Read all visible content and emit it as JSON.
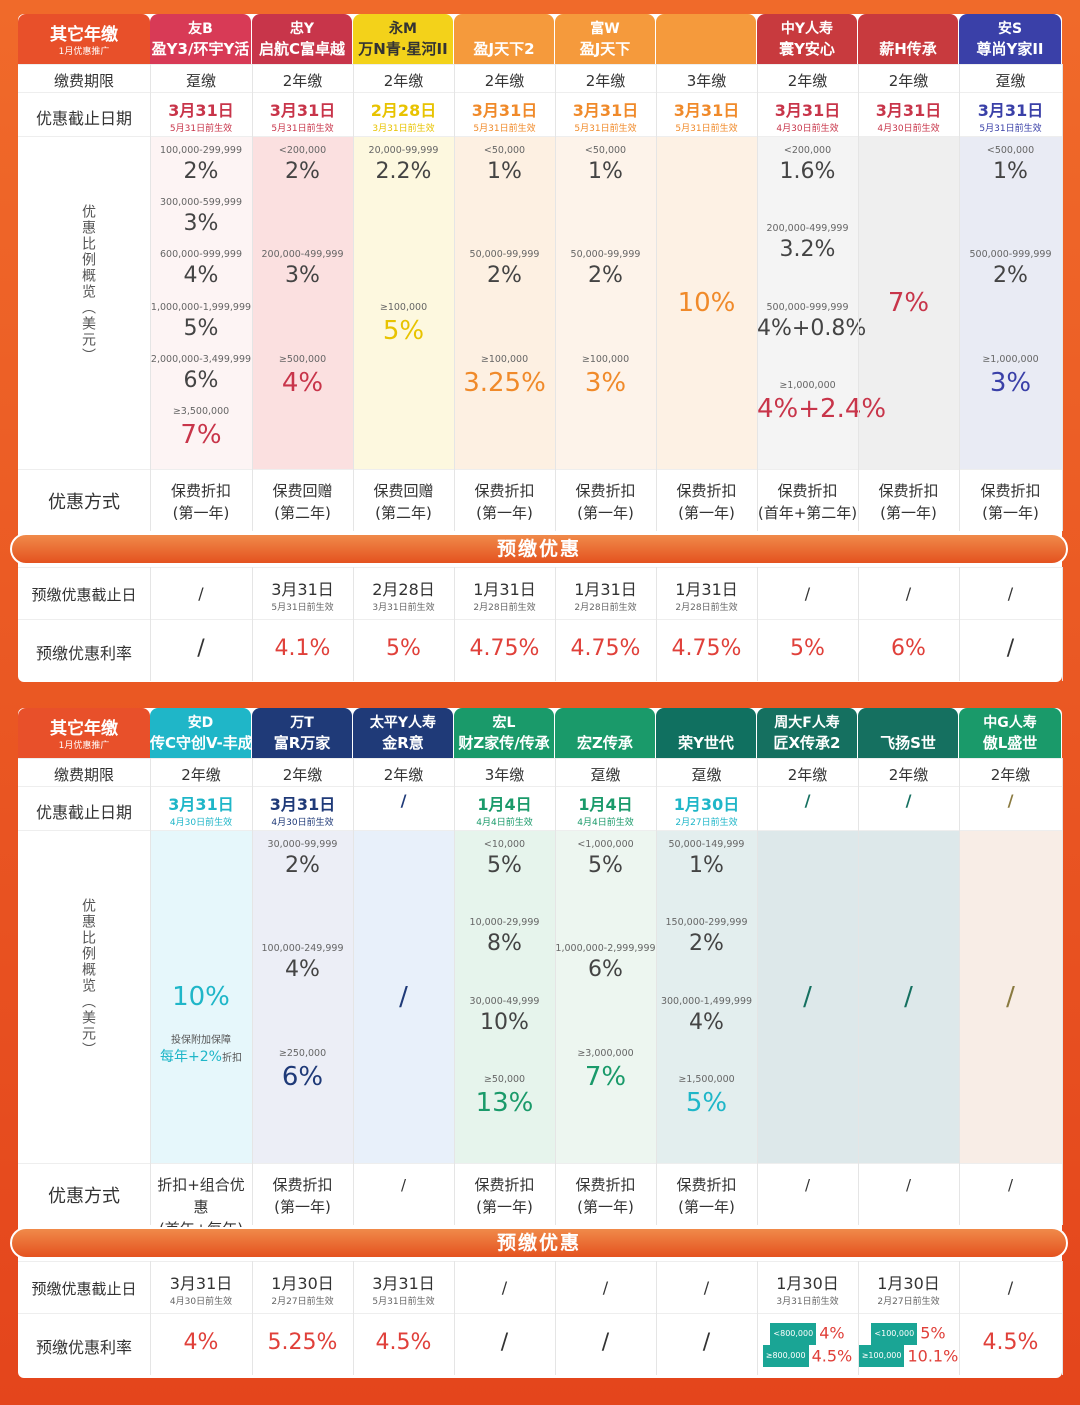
{
  "section1": {
    "corner": {
      "title": "其它年缴",
      "subtitle": "1月优惠推广"
    },
    "headers": [
      {
        "top": "友B",
        "bottom": "盈Y3/环宇Y活"
      },
      {
        "top": "忠Y",
        "bottom": "启航C富卓越"
      },
      {
        "top": "永M",
        "bottom": "万N青·星河II"
      },
      {
        "top": "",
        "bottom": "盈J天下2"
      },
      {
        "top": "富W",
        "bottom": "盈J天下"
      },
      {
        "top": "",
        "bottom": ""
      },
      {
        "top": "中Y人寿",
        "bottom": "寰Y安心"
      },
      {
        "top": "",
        "bottom": "薪H传承"
      },
      {
        "top": "安S",
        "bottom": "尊尚Y家II"
      }
    ],
    "labels": {
      "period": "缴费期限",
      "deadline": "优惠截止日期",
      "overview": "优惠比例概览（美元）",
      "method": "优惠方式",
      "banner": "预缴优惠",
      "pre_deadline": "预缴优惠截止日",
      "pre_rate": "预缴优惠利率"
    },
    "periods": [
      "趸缴",
      "2年缴",
      "2年缴",
      "2年缴",
      "2年缴",
      "3年缴",
      "2年缴",
      "2年缴",
      "趸缴"
    ],
    "deadlines": [
      {
        "date": "3月31日",
        "note": "5月31日前生效"
      },
      {
        "date": "3月31日",
        "note": "5月31日前生效"
      },
      {
        "date": "2月28日",
        "note": "3月31日前生效"
      },
      {
        "date": "3月31日",
        "note": "5月31日前生效"
      },
      {
        "date": "3月31日",
        "note": "5月31日前生效"
      },
      {
        "date": "3月31日",
        "note": "5月31日前生效"
      },
      {
        "date": "3月31日",
        "note": "4月30日前生效"
      },
      {
        "date": "3月31日",
        "note": "4月30日前生效"
      },
      {
        "date": "3月31日",
        "note": "5月31日前生效"
      }
    ],
    "tiers": [
      [
        {
          "r": "100,000-299,999",
          "p": "2%"
        },
        {
          "r": "300,000-599,999",
          "p": "3%"
        },
        {
          "r": "600,000-999,999",
          "p": "4%"
        },
        {
          "r": "1,000,000-1,999,999",
          "p": "5%"
        },
        {
          "r": "2,000,000-3,499,999",
          "p": "6%"
        },
        {
          "r": "≥3,500,000",
          "p": "7%"
        }
      ],
      [
        {
          "r": "<200,000",
          "p": "2%"
        },
        {
          "r": "200,000-499,999",
          "p": "3%"
        },
        {
          "r": "≥500,000",
          "p": "4%"
        }
      ],
      [
        {
          "r": "20,000-99,999",
          "p": "2.2%"
        },
        {
          "r": "≥100,000",
          "p": "5%"
        }
      ],
      [
        {
          "r": "<50,000",
          "p": "1%"
        },
        {
          "r": "50,000-99,999",
          "p": "2%"
        },
        {
          "r": "≥100,000",
          "p": "3.25%"
        }
      ],
      [
        {
          "r": "<50,000",
          "p": "1%"
        },
        {
          "r": "50,000-99,999",
          "p": "2%"
        },
        {
          "r": "≥100,000",
          "p": "3%"
        }
      ],
      [
        {
          "r": "",
          "p": "10%"
        }
      ],
      [
        {
          "r": "<200,000",
          "p": "1.6%"
        },
        {
          "r": "200,000-499,999",
          "p": "3.2%"
        },
        {
          "r": "500,000-999,999",
          "p": "4%+0.8%"
        },
        {
          "r": "≥1,000,000",
          "p": "4%+2.4%"
        }
      ],
      [
        {
          "r": "",
          "p": "7%"
        }
      ],
      [
        {
          "r": "<500,000",
          "p": "1%"
        },
        {
          "r": "500,000-999,999",
          "p": "2%"
        },
        {
          "r": "≥1,000,000",
          "p": "3%"
        }
      ]
    ],
    "methods": [
      [
        "保费折扣",
        "(第一年)"
      ],
      [
        "保费回赠",
        "(第二年)"
      ],
      [
        "保费回赠",
        "(第二年)"
      ],
      [
        "保费折扣",
        "(第一年)"
      ],
      [
        "保费折扣",
        "(第一年)"
      ],
      [
        "保费折扣",
        "(第一年)"
      ],
      [
        "保费折扣",
        "(首年+第二年)"
      ],
      [
        "保费折扣",
        "(第一年)"
      ],
      [
        "保费折扣",
        "(第一年)"
      ]
    ],
    "pre_deadlines": [
      {
        "date": "/",
        "note": ""
      },
      {
        "date": "3月31日",
        "note": "5月31日前生效"
      },
      {
        "date": "2月28日",
        "note": "3月31日前生效"
      },
      {
        "date": "1月31日",
        "note": "2月28日前生效"
      },
      {
        "date": "1月31日",
        "note": "2月28日前生效"
      },
      {
        "date": "1月31日",
        "note": "2月28日前生效"
      },
      {
        "date": "/",
        "note": ""
      },
      {
        "date": "/",
        "note": ""
      },
      {
        "date": "/",
        "note": ""
      }
    ],
    "pre_rates": [
      "/",
      "4.1%",
      "5%",
      "4.75%",
      "4.75%",
      "4.75%",
      "5%",
      "6%",
      "/"
    ]
  },
  "section2": {
    "corner": {
      "title": "其它年缴",
      "subtitle": "1月优惠推广"
    },
    "headers": [
      {
        "top": "安D",
        "bottom": "传C守创V-丰成"
      },
      {
        "top": "万T",
        "bottom": "富R万家"
      },
      {
        "top": "太平Y人寿",
        "bottom": "金R意"
      },
      {
        "top": "宏L",
        "bottom": "财Z家传/传承"
      },
      {
        "top": "",
        "bottom": "宏Z传承"
      },
      {
        "top": "",
        "bottom": "荣Y世代"
      },
      {
        "top": "周大F人寿",
        "bottom": "匠X传承2"
      },
      {
        "top": "",
        "bottom": "飞扬S世"
      },
      {
        "top": "中G人寿",
        "bottom": "傲L盛世"
      }
    ],
    "periods": [
      "2年缴",
      "2年缴",
      "2年缴",
      "3年缴",
      "趸缴",
      "趸缴",
      "2年缴",
      "2年缴",
      "2年缴"
    ],
    "deadlines": [
      {
        "date": "3月31日",
        "note": "4月30日前生效"
      },
      {
        "date": "3月31日",
        "note": "4月30日前生效"
      },
      {
        "date": "/",
        "note": ""
      },
      {
        "date": "1月4日",
        "note": "4月4日前生效"
      },
      {
        "date": "1月4日",
        "note": "4月4日前生效"
      },
      {
        "date": "1月30日",
        "note": "2月27日前生效"
      },
      {
        "date": "/",
        "note": ""
      },
      {
        "date": "/",
        "note": ""
      },
      {
        "date": "/",
        "note": ""
      }
    ],
    "tiers": [
      [
        {
          "r": "",
          "p": "10%"
        }
      ],
      [
        {
          "r": "30,000-99,999",
          "p": "2%"
        },
        {
          "r": "100,000-249,999",
          "p": "4%"
        },
        {
          "r": "≥250,000",
          "p": "6%"
        }
      ],
      [
        {
          "r": "",
          "p": "/"
        }
      ],
      [
        {
          "r": "<10,000",
          "p": "5%"
        },
        {
          "r": "10,000-29,999",
          "p": "8%"
        },
        {
          "r": "30,000-49,999",
          "p": "10%"
        },
        {
          "r": "≥50,000",
          "p": "13%"
        }
      ],
      [
        {
          "r": "<1,000,000",
          "p": "5%"
        },
        {
          "r": "1,000,000-2,999,999",
          "p": "6%"
        },
        {
          "r": "≥3,000,000",
          "p": "7%"
        }
      ],
      [
        {
          "r": "50,000-149,999",
          "p": "1%"
        },
        {
          "r": "150,000-299,999",
          "p": "2%"
        },
        {
          "r": "300,000-1,499,999",
          "p": "4%"
        },
        {
          "r": "≥1,500,000",
          "p": "5%"
        }
      ],
      [
        {
          "r": "",
          "p": "/"
        }
      ],
      [
        {
          "r": "",
          "p": "/"
        }
      ],
      [
        {
          "r": "",
          "p": "/"
        }
      ]
    ],
    "extra_note": {
      "line1": "投保附加保障",
      "line2a": "每年+2%",
      "line2b": "折扣"
    },
    "methods": [
      [
        "折扣+组合优惠",
        "(首年+每年)"
      ],
      [
        "保费折扣",
        "(第一年)"
      ],
      [
        "/",
        ""
      ],
      [
        "保费折扣",
        "(第一年)"
      ],
      [
        "保费折扣",
        "(第一年)"
      ],
      [
        "保费折扣",
        "(第一年)"
      ],
      [
        "/",
        ""
      ],
      [
        "/",
        ""
      ],
      [
        "/",
        ""
      ]
    ],
    "pre_deadlines": [
      {
        "date": "3月31日",
        "note": "4月30日前生效"
      },
      {
        "date": "1月30日",
        "note": "2月27日前生效"
      },
      {
        "date": "3月31日",
        "note": "5月31日前生效"
      },
      {
        "date": "/",
        "note": ""
      },
      {
        "date": "/",
        "note": ""
      },
      {
        "date": "/",
        "note": ""
      },
      {
        "date": "1月30日",
        "note": "3月31日前生效"
      },
      {
        "date": "1月30日",
        "note": "2月27日前生效"
      },
      {
        "date": "/",
        "note": ""
      }
    ],
    "pre_rates": [
      "4%",
      "5.25%",
      "4.5%",
      "/",
      "/",
      "/",
      "",
      "",
      "4.5%"
    ],
    "rate_tiers": [
      {
        "col": 6,
        "rows": [
          {
            "badge": "<800,000",
            "rate": "4%"
          },
          {
            "badge": "≥800,000",
            "rate": "4.5%"
          }
        ]
      },
      {
        "col": 7,
        "rows": [
          {
            "badge": "<100,000",
            "rate": "5%"
          },
          {
            "badge": "≥100,000",
            "rate": "10.1%"
          }
        ]
      }
    ]
  },
  "colors": {
    "s1": [
      "#d83a56",
      "#c8354a",
      "#f3d21a",
      "#f59a3c",
      "#f59a3c",
      "#f59a3c",
      "#c83a3e",
      "#c83a3e",
      "#3a40a8"
    ],
    "s1bg": [
      "#fdf4f4",
      "#fbe0e0",
      "#fdf8df",
      "#fdf0e2",
      "#fdf3ea",
      "#fdf1e4",
      "#f4f4f4",
      "#efefef",
      "#e9ebf4"
    ],
    "s1pct": [
      "#c8354a",
      "#c8354a",
      "#e8c300",
      "#f08a2a",
      "#f08a2a",
      "#f08a2a",
      "#c8354a",
      "#c8354a",
      "#3a40a8"
    ],
    "s2": [
      "#1fb6c8",
      "#1f3a78",
      "#1f3a78",
      "#1a9a6a",
      "#1a9a6a",
      "#107060",
      "#157060",
      "#157060",
      "#1a9a6a"
    ],
    "s2bg": [
      "#e6f7fb",
      "#eceef6",
      "#e8f0fa",
      "#e6f4ec",
      "#edf6f0",
      "#e3eeee",
      "#dde8ea",
      "#dde8ea",
      "#f8ede6"
    ],
    "s2pct": [
      "#1fb6c8",
      "#1f3a78",
      "#1f3a78",
      "#1a9a6a",
      "#1a9a6a",
      "#1fb6c8",
      "#157060",
      "#157060",
      "#8a7a40"
    ]
  }
}
